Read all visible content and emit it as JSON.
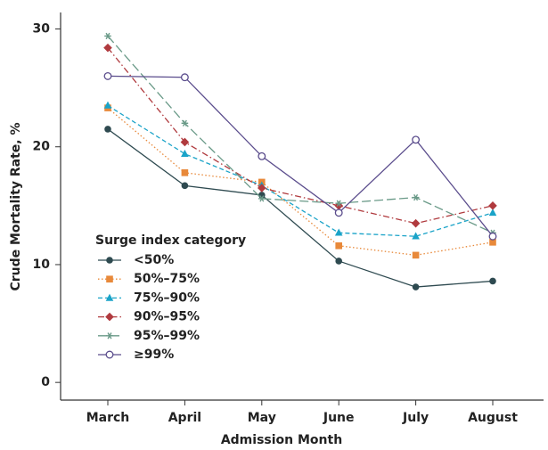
{
  "chart_data": {
    "type": "line",
    "x_label": "Admission Month",
    "y_label": "Crude Mortality Rate, %",
    "legend_title": "Surge index category",
    "categories": [
      "March",
      "April",
      "May",
      "June",
      "July",
      "August"
    ],
    "ylim": [
      -1.5,
      31.4
    ],
    "yticks": [
      0,
      10,
      20,
      30
    ],
    "series": [
      {
        "name": "<50%",
        "color": "#2e4a50",
        "marker": "circle",
        "dash": "solid",
        "values": [
          21.5,
          16.7,
          15.9,
          10.3,
          8.1,
          8.6
        ]
      },
      {
        "name": "50%–75%",
        "color": "#e8893a",
        "marker": "square",
        "dash": "dotted",
        "values": [
          23.3,
          17.8,
          17.0,
          11.6,
          10.8,
          11.9
        ]
      },
      {
        "name": "75%–90%",
        "color": "#1aa3c8",
        "marker": "triangle",
        "dash": "dashed",
        "values": [
          23.5,
          19.4,
          16.7,
          12.7,
          12.4,
          14.4
        ]
      },
      {
        "name": "90%–95%",
        "color": "#b03a3e",
        "marker": "diamond",
        "dash": "dashdot",
        "values": [
          28.4,
          20.4,
          16.5,
          15.0,
          13.5,
          15.0
        ]
      },
      {
        "name": "95%–99%",
        "color": "#6a9a88",
        "marker": "asterisk",
        "dash": "longdash",
        "values": [
          29.4,
          22.0,
          15.6,
          15.2,
          15.7,
          12.7
        ]
      },
      {
        "name": "≥99%",
        "color": "#5a4c8c",
        "marker": "open-circle",
        "dash": "solid",
        "values": [
          26.0,
          25.9,
          19.2,
          14.4,
          20.6,
          12.4
        ]
      }
    ]
  }
}
